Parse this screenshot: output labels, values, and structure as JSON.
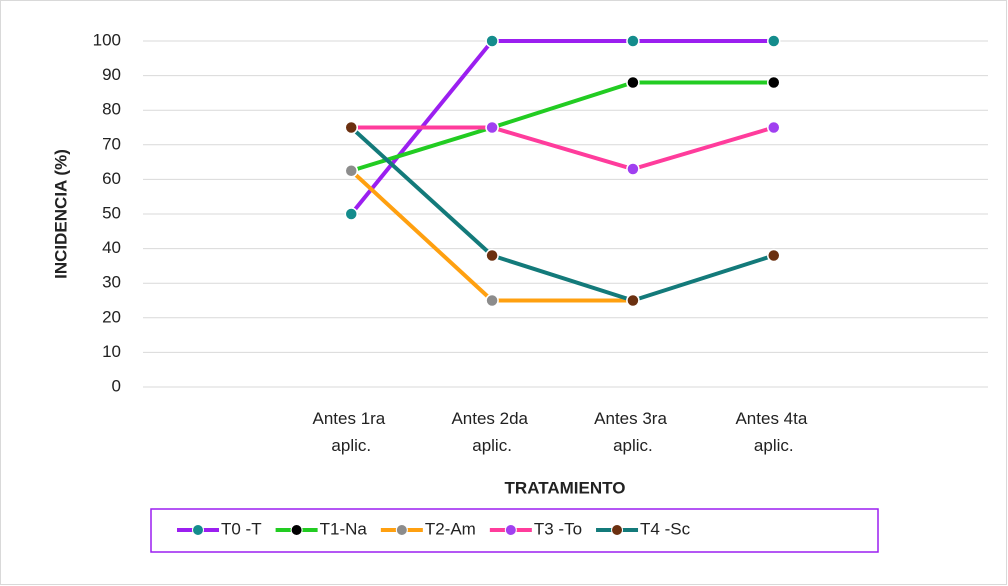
{
  "chart_data": {
    "type": "line",
    "x_label": "TRATAMIENTO",
    "y_label": "INCIDENCIA (%)",
    "categories": [
      null,
      "Antes 1ra aplic.",
      "Antes 2da aplic.",
      "Antes 3ra aplic.",
      "Antes 4ta aplic.",
      null
    ],
    "series": [
      {
        "name": "T0 -T",
        "color": "#9b1ff0",
        "marker_color": "#148c8c",
        "values": [
          null,
          50,
          100,
          100,
          100,
          null
        ]
      },
      {
        "name": "T1-Na",
        "color": "#22cc22",
        "marker_color": "#000000",
        "values": [
          null,
          62.5,
          75,
          88,
          88,
          null
        ]
      },
      {
        "name": "T2-Am",
        "color": "#ffa010",
        "marker_color": "#8c8c8c",
        "values": [
          null,
          62.5,
          25,
          25,
          null,
          null
        ]
      },
      {
        "name": "T3 -To",
        "color": "#ff3c9c",
        "marker_color": "#a040f0",
        "values": [
          null,
          75,
          75,
          63,
          75,
          null
        ]
      },
      {
        "name": "T4 -Sc",
        "color": "#137a7a",
        "marker_color": "#6b3010",
        "values": [
          null,
          75,
          38,
          25,
          38,
          null
        ]
      }
    ],
    "ylim": [
      0,
      100
    ],
    "yticks": [
      0,
      10,
      20,
      30,
      40,
      50,
      60,
      70,
      80,
      90,
      100
    ],
    "grid": true,
    "legend": "bottom"
  }
}
